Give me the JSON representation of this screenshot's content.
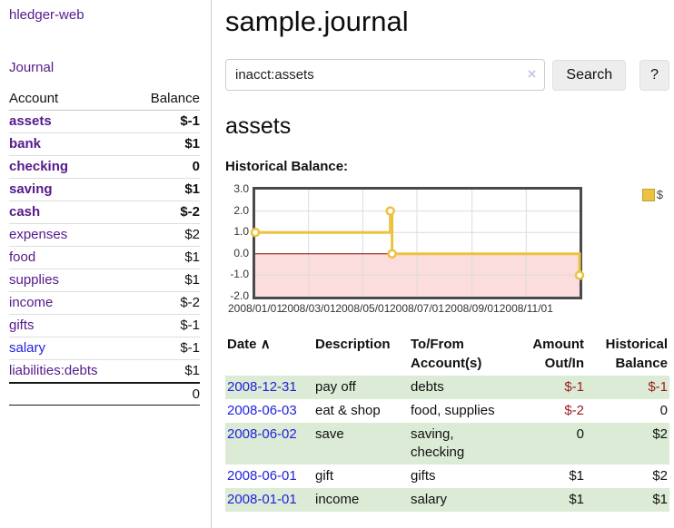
{
  "app": {
    "title": "hledger-web"
  },
  "sidebar": {
    "journal_link": "Journal",
    "accounts": {
      "headers": [
        "Account",
        "Balance"
      ],
      "rows": [
        {
          "account": "assets",
          "balance": "$-1",
          "indent": 1,
          "bold": true,
          "link_color": "purple"
        },
        {
          "account": "bank",
          "balance": "$1",
          "indent": 2,
          "bold": true,
          "link_color": "purple"
        },
        {
          "account": "checking",
          "balance": "0",
          "indent": 3,
          "bold": true,
          "link_color": "purple"
        },
        {
          "account": "saving",
          "balance": "$1",
          "indent": 3,
          "bold": true,
          "link_color": "purple"
        },
        {
          "account": "cash",
          "balance": "$-2",
          "indent": 2,
          "bold": true,
          "link_color": "purple"
        },
        {
          "account": "expenses",
          "balance": "$2",
          "indent": 1,
          "bold": false,
          "link_color": "purple"
        },
        {
          "account": "food",
          "balance": "$1",
          "indent": 2,
          "bold": false,
          "link_color": "purple"
        },
        {
          "account": "supplies",
          "balance": "$1",
          "indent": 2,
          "bold": false,
          "link_color": "purple"
        },
        {
          "account": "income",
          "balance": "$-2",
          "indent": 1,
          "bold": false,
          "link_color": "purple"
        },
        {
          "account": "gifts",
          "balance": "$-1",
          "indent": 2,
          "bold": false,
          "link_color": "purple"
        },
        {
          "account": "salary",
          "balance": "$-1",
          "indent": 2,
          "bold": false,
          "link_color": "blue"
        },
        {
          "account": "liabilities:debts",
          "balance": "$1",
          "indent": 1,
          "bold": false,
          "link_color": "purple"
        }
      ],
      "total": "0"
    }
  },
  "main": {
    "title": "sample.journal",
    "search": {
      "value": "inacct:assets",
      "clear_icon": "×",
      "button_label": "Search",
      "help_label": "?"
    },
    "account_heading": "assets",
    "chart_label": "Historical Balance:"
  },
  "chart_data": {
    "type": "line",
    "title": "Historical Balance",
    "step": true,
    "x_range": [
      "2008-01-01",
      "2008-12-31"
    ],
    "ylim": [
      -2,
      3
    ],
    "grid": true,
    "legend": {
      "position": "top-right",
      "label": "$"
    },
    "series": [
      {
        "name": "$",
        "color": "#edc240",
        "points": [
          {
            "x": "2008-01-01",
            "y": 1
          },
          {
            "x": "2008-06-01",
            "y": 2
          },
          {
            "x": "2008-06-03",
            "y": 0
          },
          {
            "x": "2008-12-31",
            "y": -1
          }
        ]
      }
    ],
    "y_ticks": [
      {
        "label": "3.0",
        "value": 3
      },
      {
        "label": "2.0",
        "value": 2
      },
      {
        "label": "1.0",
        "value": 1
      },
      {
        "label": "0.0",
        "value": 0
      },
      {
        "label": "-1.0",
        "value": -1
      },
      {
        "label": "-2.0",
        "value": -2
      }
    ],
    "x_ticks": [
      {
        "label": "2008/01/01",
        "date": "2008-01-01"
      },
      {
        "label": "2008/03/01",
        "date": "2008-03-01"
      },
      {
        "label": "2008/05/01",
        "date": "2008-05-01"
      },
      {
        "label": "2008/07/01",
        "date": "2008-07-01"
      },
      {
        "label": "2008/09/01",
        "date": "2008-09-01"
      },
      {
        "label": "2008/11/01",
        "date": "2008-11-01"
      }
    ],
    "colors": {
      "negative_fill": "#fbdddd",
      "zero_line": "#8b0000",
      "gridline": "#dcdcdc",
      "plot_border": "#4a4a4a"
    }
  },
  "transactions": {
    "headers": {
      "date": "Date",
      "sort_icon": "∧",
      "description": "Description",
      "accounts": "To/From Account(s)",
      "amount": "Amount Out/In",
      "balance": "Historical Balance"
    },
    "rows": [
      {
        "date": "2008-12-31",
        "description": "pay off",
        "accounts": "debts",
        "amount": "$-1",
        "balance": "$-1"
      },
      {
        "date": "2008-06-03",
        "description": "eat & shop",
        "accounts": "food, supplies",
        "amount": "$-2",
        "balance": "0"
      },
      {
        "date": "2008-06-02",
        "description": "save",
        "accounts": "saving,\nchecking",
        "amount": "0",
        "balance": "$2"
      },
      {
        "date": "2008-06-01",
        "description": "gift",
        "accounts": "gifts",
        "amount": "$1",
        "balance": "$2"
      },
      {
        "date": "2008-01-01",
        "description": "income",
        "accounts": "salary",
        "amount": "$1",
        "balance": "$1"
      }
    ]
  }
}
